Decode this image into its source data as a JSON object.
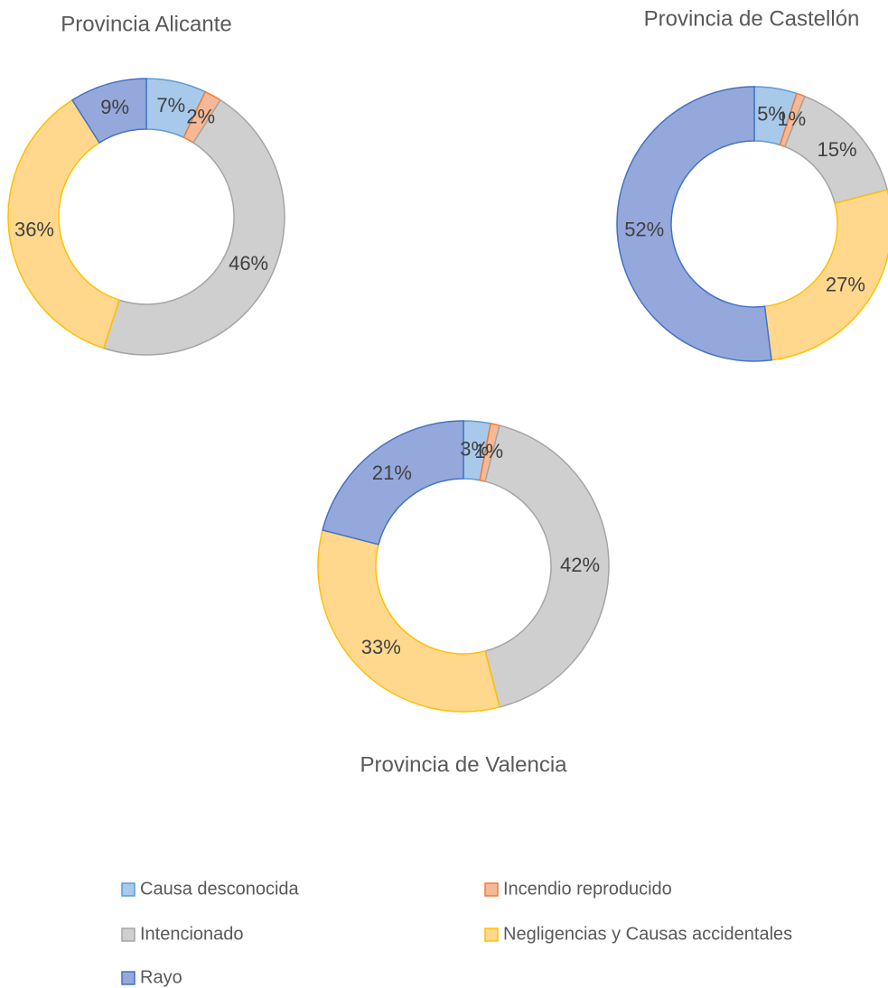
{
  "chart_data": [
    {
      "type": "donut",
      "title": "Provincia Alicante",
      "categories": [
        "Causa desconocida",
        "Incendio reproducido",
        "Intencionado",
        "Negligencias y Causas accidentales",
        "Rayo"
      ],
      "values": [
        7,
        2,
        46,
        36,
        9
      ],
      "value_labels": [
        "7%",
        "2%",
        "46%",
        "36%",
        "9%"
      ],
      "colors": [
        "#a9c9ea",
        "#f6b896",
        "#cfcfcf",
        "#ffd88e",
        "#95a8dc"
      ],
      "edge_colors": [
        "#5b9bd5",
        "#ed7d31",
        "#a5a5a5",
        "#ffc000",
        "#4472c4"
      ]
    },
    {
      "type": "donut",
      "title": "Provincia de Castellón",
      "categories": [
        "Causa desconocida",
        "Incendio reproducido",
        "Intencionado",
        "Negligencias y Causas accidentales",
        "Rayo"
      ],
      "values": [
        5,
        1,
        15,
        27,
        52
      ],
      "value_labels": [
        "5%",
        "1%",
        "15%",
        "27%",
        "52%"
      ],
      "colors": [
        "#a9c9ea",
        "#f6b896",
        "#cfcfcf",
        "#ffd88e",
        "#95a8dc"
      ],
      "edge_colors": [
        "#5b9bd5",
        "#ed7d31",
        "#a5a5a5",
        "#ffc000",
        "#4472c4"
      ]
    },
    {
      "type": "donut",
      "title": "Provincia de Valencia",
      "categories": [
        "Causa desconocida",
        "Incendio reproducido",
        "Intencionado",
        "Negligencias y Causas accidentales",
        "Rayo"
      ],
      "values": [
        3,
        1,
        42,
        33,
        21
      ],
      "value_labels": [
        "3%",
        "1%",
        "42%",
        "33%",
        "21%"
      ],
      "colors": [
        "#a9c9ea",
        "#f6b896",
        "#cfcfcf",
        "#ffd88e",
        "#95a8dc"
      ],
      "edge_colors": [
        "#5b9bd5",
        "#ed7d31",
        "#a5a5a5",
        "#ffc000",
        "#4472c4"
      ]
    }
  ]
}
